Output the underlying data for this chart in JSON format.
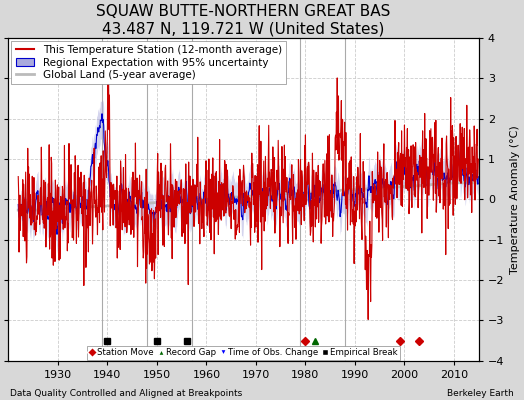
{
  "title": "SQUAW BUTTE-NORTHERN GREAT BAS",
  "subtitle": "43.487 N, 119.721 W (United States)",
  "ylabel": "Temperature Anomaly (°C)",
  "footer_left": "Data Quality Controlled and Aligned at Breakpoints",
  "footer_right": "Berkeley Earth",
  "ylim": [
    -4,
    4
  ],
  "xlim": [
    1920,
    2015
  ],
  "yticks": [
    -4,
    -3,
    -2,
    -1,
    0,
    1,
    2,
    3,
    4
  ],
  "xticks": [
    1930,
    1940,
    1950,
    1960,
    1970,
    1980,
    1990,
    2000,
    2010
  ],
  "outer_bg": "#d8d8d8",
  "plot_bg": "#ffffff",
  "grid_color": "#cccccc",
  "vertical_line_color": "#aaaaaa",
  "vertical_lines": [
    1939,
    1948,
    1957,
    1979,
    1988
  ],
  "station_moves": [
    1980,
    1999,
    2003
  ],
  "record_gaps": [
    1982
  ],
  "obs_changes": [],
  "empirical_breaks": [
    1940,
    1950,
    1956
  ],
  "red_line_color": "#cc0000",
  "blue_line_color": "#0000cc",
  "blue_fill_color": "#aaaadd",
  "gray_line_color": "#bbbbbb",
  "title_fontsize": 11,
  "legend_fontsize": 7.5,
  "tick_fontsize": 8,
  "footer_fontsize": 6.5
}
